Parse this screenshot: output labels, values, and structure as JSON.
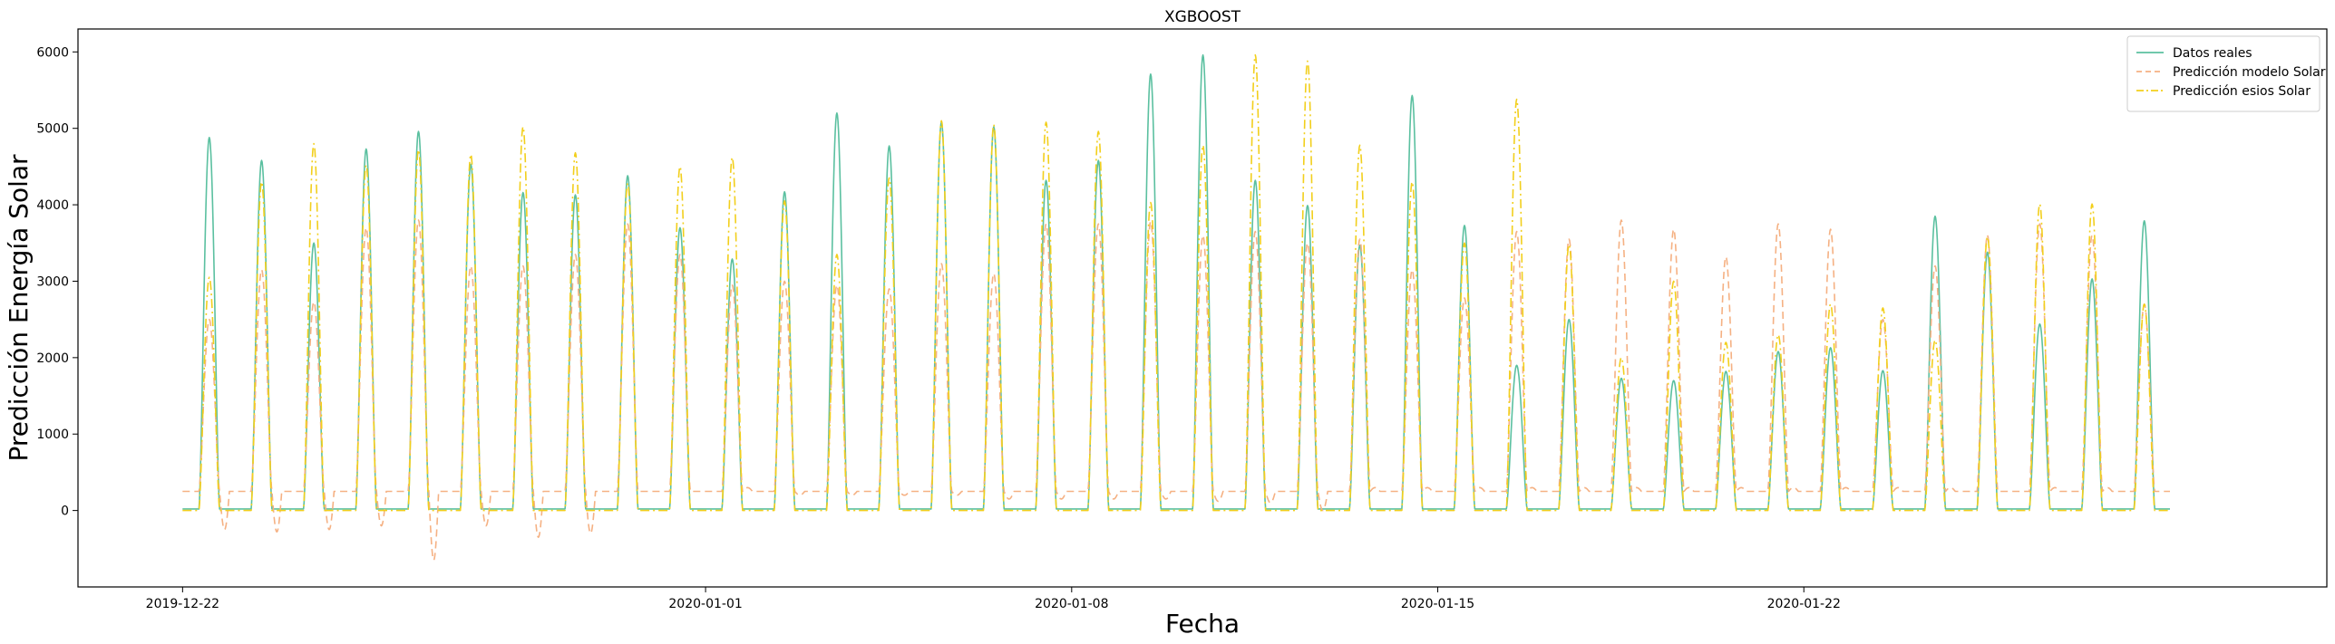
{
  "chart_data": {
    "type": "line",
    "title": "XGBOOST",
    "xlabel": "Fecha",
    "ylabel": "Predicción Energía Solar",
    "x_start": "2019-12-22",
    "x_end": "2020-01-29",
    "xlim": [
      "2019-12-20",
      "2020-02-01"
    ],
    "ylim": [
      -1000,
      6300
    ],
    "yticks": [
      0,
      1000,
      2000,
      3000,
      4000,
      5000,
      6000
    ],
    "xticks": [
      "2019-12-22",
      "2020-01-01",
      "2020-01-08",
      "2020-01-15",
      "2020-01-22"
    ],
    "legend": {
      "position": "top-right"
    },
    "series": [
      {
        "name": "Datos reales",
        "color": "#5bc0a0",
        "style": "solid",
        "night": 20,
        "peaks": [
          4880,
          4580,
          3500,
          4730,
          4960,
          4530,
          4160,
          4130,
          4380,
          3700,
          3290,
          4170,
          5200,
          4770,
          5080,
          5020,
          4320,
          4580,
          5710,
          5960,
          4320,
          3990,
          3470,
          5430,
          3730,
          1900,
          2500,
          1730,
          1700,
          1820,
          2080,
          2130,
          1830,
          3850,
          3380,
          2440,
          3030,
          3790,
          3470
        ]
      },
      {
        "name": "Predicción modelo Solar",
        "color": "#f5b183",
        "style": "dashed",
        "night": 250,
        "peaks": [
          2500,
          3150,
          2730,
          3700,
          3800,
          3200,
          3200,
          3350,
          3750,
          3350,
          2950,
          3000,
          2950,
          2900,
          3230,
          3100,
          3750,
          3750,
          3780,
          3600,
          3650,
          3500,
          3550,
          3150,
          2780,
          3650,
          3550,
          3800,
          3680,
          3320,
          3750,
          3680,
          2500,
          3200,
          3600,
          3750,
          3600,
          2700,
          3000
        ],
        "troughs": [
          -250,
          -280,
          -250,
          -200,
          -650,
          -200,
          -350,
          -300,
          250,
          250,
          300,
          200,
          200,
          200,
          200,
          150,
          150,
          150,
          150,
          120,
          100,
          0,
          300,
          300,
          300,
          300,
          300,
          300,
          300,
          300,
          300,
          300,
          300,
          300,
          250,
          300,
          300,
          250,
          250
        ]
      },
      {
        "name": "Predicción esios Solar",
        "color": "#f2cf1c",
        "style": "dashdot",
        "night": 0,
        "peaks": [
          3050,
          4300,
          4800,
          4520,
          4720,
          4660,
          5020,
          4680,
          4280,
          4500,
          4620,
          4050,
          3350,
          4350,
          5100,
          5050,
          5080,
          4960,
          4030,
          4780,
          5960,
          5880,
          4780,
          4300,
          3500,
          5380,
          3480,
          2000,
          3000,
          2200,
          2300,
          2700,
          2650,
          2230,
          3580,
          4010,
          4010,
          2700,
          2900
        ]
      }
    ]
  }
}
